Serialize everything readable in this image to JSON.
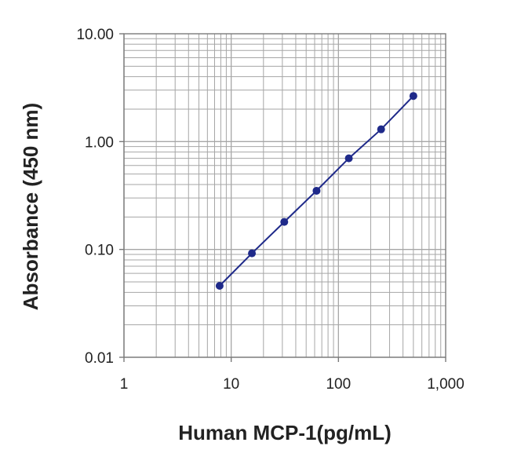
{
  "chart_data": {
    "type": "line",
    "xlabel": "Human MCP-1(pg/mL)",
    "ylabel": "Absorbance (450 nm)",
    "xscale": "log",
    "yscale": "log",
    "xlim": [
      1,
      1000
    ],
    "ylim": [
      0.01,
      10
    ],
    "x_ticks": [
      "1",
      "10",
      "100",
      "1,000"
    ],
    "y_ticks": [
      "0.01",
      "0.10",
      "1.00",
      "10.00"
    ],
    "grid": true,
    "legend": "none",
    "series": [
      {
        "x": [
          7.8,
          15.6,
          31.25,
          62.5,
          125,
          250,
          500
        ],
        "y": [
          0.046,
          0.092,
          0.18,
          0.35,
          0.7,
          1.3,
          2.65
        ]
      }
    ],
    "colors": {
      "series": "#1f2a8a",
      "grid": "#a6a6a6",
      "axis": "#7a7a7a"
    }
  }
}
